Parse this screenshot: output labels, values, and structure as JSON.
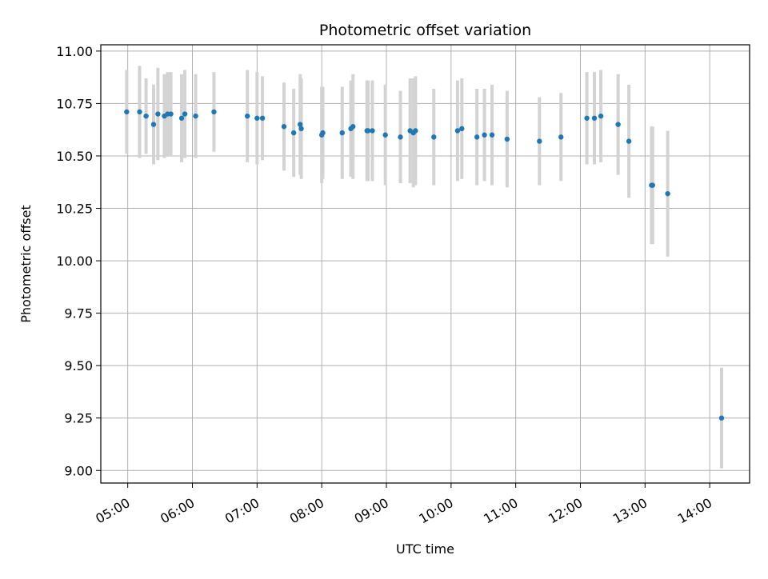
{
  "chart_data": {
    "type": "scatter",
    "title": "Photometric offset variation",
    "xlabel": "UTC time",
    "ylabel": "Photometric offset",
    "xlim": [
      "04:35",
      "14:37"
    ],
    "ylim": [
      8.94,
      11.03
    ],
    "grid": true,
    "x_ticks": [
      "05:00",
      "06:00",
      "07:00",
      "08:00",
      "09:00",
      "10:00",
      "11:00",
      "12:00",
      "13:00",
      "14:00"
    ],
    "y_ticks": [
      "9.00",
      "9.25",
      "9.50",
      "9.75",
      "10.00",
      "10.25",
      "10.50",
      "10.75",
      "11.00"
    ],
    "point_color": "#1f77b4",
    "errorbar_color": "#d3d3d3",
    "series": [
      {
        "x": [
          "04:59",
          "05:11",
          "05:17",
          "05:24",
          "05:28",
          "05:34",
          "05:37",
          "05:40",
          "05:50",
          "05:53",
          "06:03",
          "06:20",
          "06:51",
          "07:00",
          "07:05",
          "07:25",
          "07:34",
          "07:40",
          "07:41",
          "08:00",
          "08:01",
          "08:19",
          "08:27",
          "08:29",
          "08:42",
          "08:43",
          "08:47",
          "08:59",
          "09:13",
          "09:22",
          "09:25",
          "09:27",
          "09:44",
          "10:06",
          "10:10",
          "10:24",
          "10:31",
          "10:38",
          "10:52",
          "11:22",
          "11:42",
          "12:06",
          "12:13",
          "12:19",
          "12:35",
          "12:45",
          "13:06",
          "13:07",
          "13:21",
          "14:11"
        ],
        "y": [
          10.71,
          10.71,
          10.69,
          10.65,
          10.7,
          10.69,
          10.7,
          10.7,
          10.68,
          10.7,
          10.69,
          10.71,
          10.69,
          10.68,
          10.68,
          10.64,
          10.61,
          10.65,
          10.63,
          10.6,
          10.61,
          10.61,
          10.63,
          10.64,
          10.62,
          10.62,
          10.62,
          10.6,
          10.59,
          10.62,
          10.61,
          10.62,
          10.59,
          10.62,
          10.63,
          10.59,
          10.6,
          10.6,
          10.58,
          10.57,
          10.59,
          10.68,
          10.68,
          10.69,
          10.65,
          10.57,
          10.36,
          10.36,
          10.32,
          9.25
        ],
        "err": [
          0.2,
          0.22,
          0.18,
          0.19,
          0.22,
          0.2,
          0.2,
          0.2,
          0.21,
          0.21,
          0.2,
          0.19,
          0.22,
          0.22,
          0.2,
          0.21,
          0.21,
          0.24,
          0.24,
          0.23,
          0.22,
          0.22,
          0.23,
          0.25,
          0.24,
          0.24,
          0.24,
          0.24,
          0.22,
          0.25,
          0.26,
          0.26,
          0.23,
          0.24,
          0.24,
          0.23,
          0.22,
          0.24,
          0.23,
          0.21,
          0.21,
          0.22,
          0.22,
          0.22,
          0.24,
          0.27,
          0.28,
          0.28,
          0.3,
          0.24
        ]
      }
    ]
  }
}
